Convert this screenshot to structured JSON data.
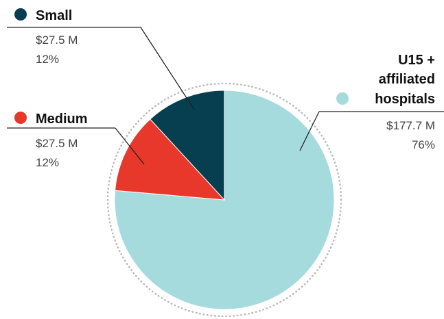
{
  "chart_data": {
    "type": "pie",
    "title": "",
    "series": [
      {
        "name": "U15 + affiliated hospitals",
        "label_lines": [
          "U15 +",
          "affiliated",
          "hospitals"
        ],
        "amount": "$177.7 M",
        "percent": "76%",
        "value": 177.7,
        "share": 76,
        "color": "#a5dbdd"
      },
      {
        "name": "Medium",
        "label_lines": [
          "Medium"
        ],
        "amount": "$27.5 M",
        "percent": "12%",
        "value": 27.5,
        "share": 12,
        "color": "#e8372b"
      },
      {
        "name": "Small",
        "label_lines": [
          "Small"
        ],
        "amount": "$27.5 M",
        "percent": "12%",
        "value": 27.5,
        "share": 12,
        "color": "#073f51"
      }
    ],
    "start_angle": "12 o'clock",
    "direction": "clockwise",
    "legend": "callout labels with leader lines",
    "outer_ring": "dotted"
  }
}
